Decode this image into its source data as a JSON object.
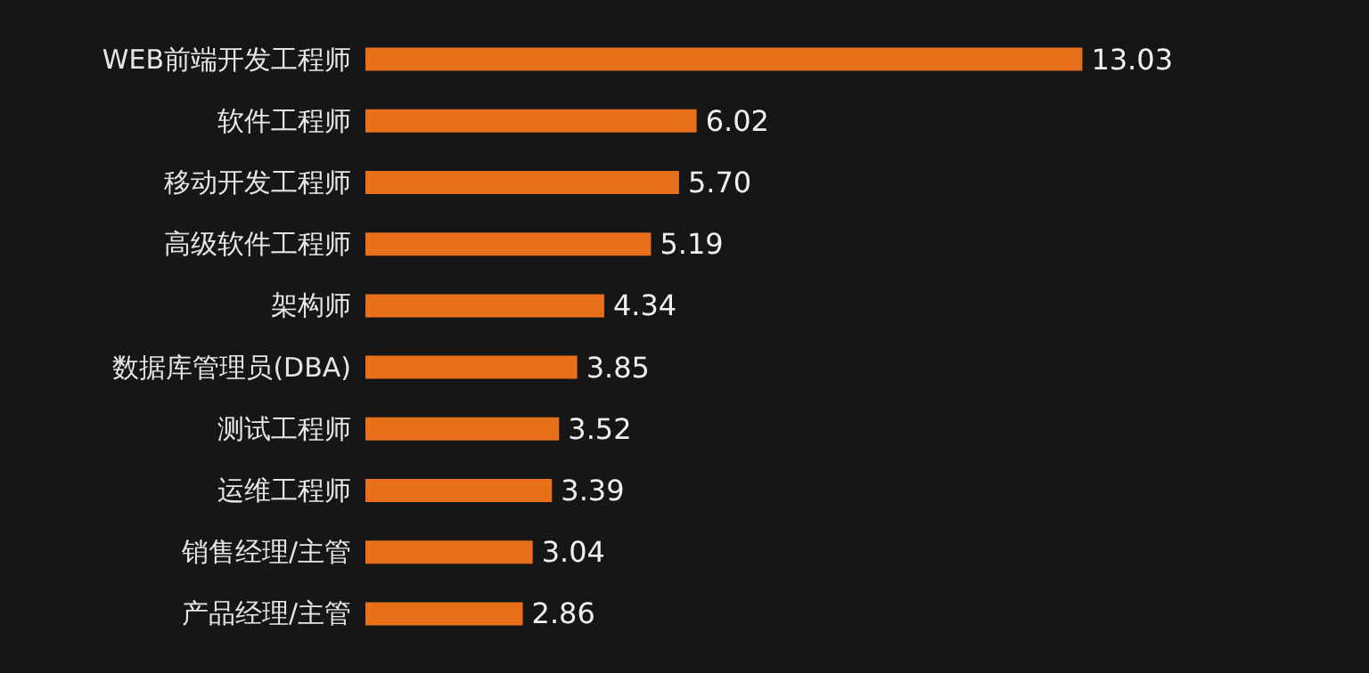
{
  "chart_data": {
    "type": "bar",
    "orientation": "horizontal",
    "categories": [
      "WEB前端开发工程师",
      "软件工程师",
      "移动开发工程师",
      "高级软件工程师",
      "架构师",
      "数据库管理员(DBA)",
      "测试工程师",
      "运维工程师",
      "销售经理/主管",
      "产品经理/主管"
    ],
    "values": [
      13.03,
      6.02,
      5.7,
      5.19,
      4.34,
      3.85,
      3.52,
      3.39,
      3.04,
      2.86
    ],
    "value_labels": [
      "13.03",
      "6.02",
      "5.70",
      "5.19",
      "4.34",
      "3.85",
      "3.52",
      "3.39",
      "3.04",
      "2.86"
    ],
    "color": "#e8701a",
    "tick_labels": "y"
  }
}
